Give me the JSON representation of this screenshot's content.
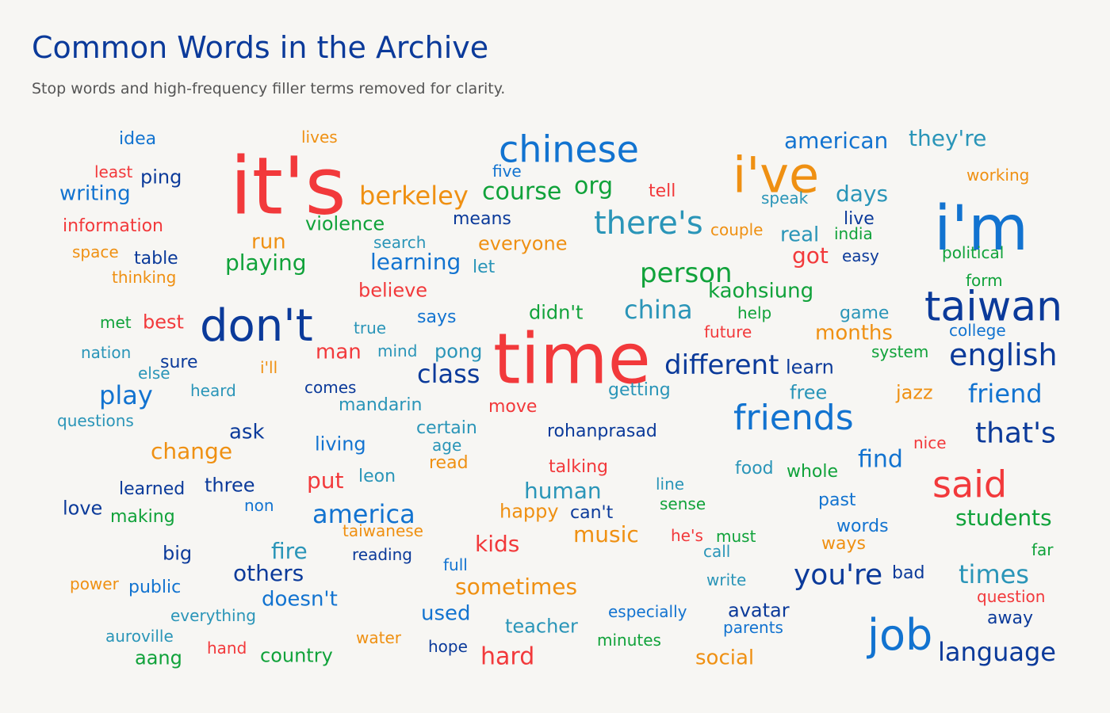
{
  "chart_data": {
    "type": "wordcloud",
    "title": "Common Words in the Archive",
    "subtitle": "Stop words and high-frequency filler terms removed for clarity.",
    "palette": {
      "dark_blue": "#0b3a9a",
      "blue": "#1273d0",
      "teal": "#2a95b8",
      "red": "#f2393b",
      "orange": "#ef9012",
      "green": "#10a23a"
    },
    "words": [
      {
        "text": "it's",
        "weight": 100,
        "color": "red"
      },
      {
        "text": "time",
        "weight": 90,
        "color": "red"
      },
      {
        "text": "i'm",
        "weight": 80,
        "color": "blue"
      },
      {
        "text": "i've",
        "weight": 65,
        "color": "orange"
      },
      {
        "text": "don't",
        "weight": 60,
        "color": "dark_blue"
      },
      {
        "text": "job",
        "weight": 58,
        "color": "blue"
      },
      {
        "text": "taiwan",
        "weight": 55,
        "color": "dark_blue"
      },
      {
        "text": "chinese",
        "weight": 52,
        "color": "blue"
      },
      {
        "text": "said",
        "weight": 50,
        "color": "red"
      },
      {
        "text": "friends",
        "weight": 48,
        "color": "blue"
      },
      {
        "text": "there's",
        "weight": 46,
        "color": "teal"
      },
      {
        "text": "english",
        "weight": 43,
        "color": "dark_blue"
      },
      {
        "text": "you're",
        "weight": 42,
        "color": "dark_blue"
      },
      {
        "text": "that's",
        "weight": 41,
        "color": "dark_blue"
      },
      {
        "text": "different",
        "weight": 40,
        "color": "dark_blue"
      },
      {
        "text": "person",
        "weight": 40,
        "color": "green"
      },
      {
        "text": "china",
        "weight": 39,
        "color": "teal"
      },
      {
        "text": "play",
        "weight": 39,
        "color": "blue"
      },
      {
        "text": "friend",
        "weight": 38,
        "color": "blue"
      },
      {
        "text": "times",
        "weight": 38,
        "color": "teal"
      },
      {
        "text": "class",
        "weight": 38,
        "color": "dark_blue"
      },
      {
        "text": "america",
        "weight": 38,
        "color": "blue"
      },
      {
        "text": "language",
        "weight": 37,
        "color": "dark_blue"
      },
      {
        "text": "berkeley",
        "weight": 37,
        "color": "orange"
      },
      {
        "text": "find",
        "weight": 36,
        "color": "blue"
      },
      {
        "text": "hard",
        "weight": 36,
        "color": "red"
      },
      {
        "text": "course",
        "weight": 35,
        "color": "green"
      },
      {
        "text": "org",
        "weight": 35,
        "color": "green"
      },
      {
        "text": "students",
        "weight": 34,
        "color": "green"
      },
      {
        "text": "american",
        "weight": 33,
        "color": "blue"
      },
      {
        "text": "playing",
        "weight": 33,
        "color": "green"
      },
      {
        "text": "others",
        "weight": 32,
        "color": "dark_blue"
      },
      {
        "text": "got",
        "weight": 32,
        "color": "red"
      },
      {
        "text": "fire",
        "weight": 32,
        "color": "teal"
      },
      {
        "text": "they're",
        "weight": 31,
        "color": "teal"
      },
      {
        "text": "days",
        "weight": 31,
        "color": "teal"
      },
      {
        "text": "human",
        "weight": 31,
        "color": "teal"
      },
      {
        "text": "change",
        "weight": 30,
        "color": "orange"
      },
      {
        "text": "learning",
        "weight": 30,
        "color": "blue"
      },
      {
        "text": "put",
        "weight": 30,
        "color": "red"
      },
      {
        "text": "sometimes",
        "weight": 30,
        "color": "orange"
      },
      {
        "text": "music",
        "weight": 30,
        "color": "orange"
      },
      {
        "text": "kids",
        "weight": 30,
        "color": "red"
      },
      {
        "text": "doesn't",
        "weight": 29,
        "color": "blue"
      },
      {
        "text": "kaohsiung",
        "weight": 29,
        "color": "green"
      },
      {
        "text": "writing",
        "weight": 29,
        "color": "blue"
      },
      {
        "text": "man",
        "weight": 28,
        "color": "red"
      },
      {
        "text": "real",
        "weight": 28,
        "color": "teal"
      },
      {
        "text": "social",
        "weight": 28,
        "color": "orange"
      },
      {
        "text": "used",
        "weight": 28,
        "color": "blue"
      },
      {
        "text": "run",
        "weight": 28,
        "color": "orange"
      },
      {
        "text": "ask",
        "weight": 27,
        "color": "dark_blue"
      },
      {
        "text": "months",
        "weight": 27,
        "color": "orange"
      },
      {
        "text": "learn",
        "weight": 27,
        "color": "dark_blue"
      },
      {
        "text": "teacher",
        "weight": 27,
        "color": "teal"
      },
      {
        "text": "ping",
        "weight": 27,
        "color": "dark_blue"
      },
      {
        "text": "three",
        "weight": 27,
        "color": "dark_blue"
      },
      {
        "text": "best",
        "weight": 27,
        "color": "red"
      },
      {
        "text": "aang",
        "weight": 27,
        "color": "green"
      },
      {
        "text": "country",
        "weight": 26,
        "color": "green"
      },
      {
        "text": "violence",
        "weight": 26,
        "color": "green"
      },
      {
        "text": "living",
        "weight": 26,
        "color": "blue"
      },
      {
        "text": "pong",
        "weight": 26,
        "color": "teal"
      },
      {
        "text": "didn't",
        "weight": 26,
        "color": "green"
      },
      {
        "text": "avatar",
        "weight": 26,
        "color": "dark_blue"
      },
      {
        "text": "believe",
        "weight": 26,
        "color": "red"
      },
      {
        "text": "free",
        "weight": 26,
        "color": "teal"
      },
      {
        "text": "jazz",
        "weight": 26,
        "color": "orange"
      },
      {
        "text": "happy",
        "weight": 26,
        "color": "orange"
      },
      {
        "text": "everyone",
        "weight": 26,
        "color": "orange"
      },
      {
        "text": "big",
        "weight": 26,
        "color": "dark_blue"
      },
      {
        "text": "love",
        "weight": 26,
        "color": "dark_blue"
      },
      {
        "text": "idea",
        "weight": 25,
        "color": "blue"
      },
      {
        "text": "means",
        "weight": 25,
        "color": "dark_blue"
      },
      {
        "text": "food",
        "weight": 25,
        "color": "teal"
      },
      {
        "text": "read",
        "weight": 25,
        "color": "orange"
      },
      {
        "text": "words",
        "weight": 25,
        "color": "blue"
      },
      {
        "text": "ways",
        "weight": 25,
        "color": "orange"
      },
      {
        "text": "learned",
        "weight": 24,
        "color": "dark_blue"
      },
      {
        "text": "information",
        "weight": 24,
        "color": "red"
      },
      {
        "text": "making",
        "weight": 24,
        "color": "green"
      },
      {
        "text": "says",
        "weight": 24,
        "color": "blue"
      },
      {
        "text": "game",
        "weight": 24,
        "color": "teal"
      },
      {
        "text": "mandarin",
        "weight": 24,
        "color": "teal"
      },
      {
        "text": "getting",
        "weight": 24,
        "color": "teal"
      },
      {
        "text": "move",
        "weight": 24,
        "color": "red"
      },
      {
        "text": "talking",
        "weight": 24,
        "color": "red"
      },
      {
        "text": "sure",
        "weight": 24,
        "color": "dark_blue"
      },
      {
        "text": "leon",
        "weight": 24,
        "color": "teal"
      },
      {
        "text": "live",
        "weight": 24,
        "color": "dark_blue"
      },
      {
        "text": "whole",
        "weight": 24,
        "color": "green"
      },
      {
        "text": "rohanprasad",
        "weight": 24,
        "color": "dark_blue"
      },
      {
        "text": "certain",
        "weight": 24,
        "color": "teal"
      },
      {
        "text": "tell",
        "weight": 24,
        "color": "red"
      },
      {
        "text": "past",
        "weight": 24,
        "color": "blue"
      },
      {
        "text": "public",
        "weight": 24,
        "color": "blue"
      },
      {
        "text": "reading",
        "weight": 23,
        "color": "dark_blue"
      },
      {
        "text": "write",
        "weight": 23,
        "color": "teal"
      },
      {
        "text": "taiwanese",
        "weight": 23,
        "color": "orange"
      },
      {
        "text": "bad",
        "weight": 23,
        "color": "dark_blue"
      },
      {
        "text": "can't",
        "weight": 23,
        "color": "dark_blue"
      },
      {
        "text": "especially",
        "weight": 23,
        "color": "blue"
      },
      {
        "text": "table",
        "weight": 23,
        "color": "dark_blue"
      },
      {
        "text": "questions",
        "weight": 23,
        "color": "teal"
      },
      {
        "text": "everything",
        "weight": 23,
        "color": "teal"
      },
      {
        "text": "comes",
        "weight": 23,
        "color": "dark_blue"
      },
      {
        "text": "lives",
        "weight": 23,
        "color": "orange"
      },
      {
        "text": "let",
        "weight": 23,
        "color": "teal"
      },
      {
        "text": "working",
        "weight": 23,
        "color": "orange"
      },
      {
        "text": "speak",
        "weight": 23,
        "color": "teal"
      },
      {
        "text": "easy",
        "weight": 23,
        "color": "dark_blue"
      },
      {
        "text": "couple",
        "weight": 23,
        "color": "orange"
      },
      {
        "text": "college",
        "weight": 23,
        "color": "blue"
      },
      {
        "text": "away",
        "weight": 23,
        "color": "dark_blue"
      },
      {
        "text": "question",
        "weight": 23,
        "color": "red"
      },
      {
        "text": "heard",
        "weight": 22,
        "color": "teal"
      },
      {
        "text": "thinking",
        "weight": 22,
        "color": "orange"
      },
      {
        "text": "search",
        "weight": 22,
        "color": "teal"
      },
      {
        "text": "true",
        "weight": 22,
        "color": "teal"
      },
      {
        "text": "mind",
        "weight": 22,
        "color": "teal"
      },
      {
        "text": "least",
        "weight": 22,
        "color": "red"
      },
      {
        "text": "nation",
        "weight": 22,
        "color": "teal"
      },
      {
        "text": "else",
        "weight": 22,
        "color": "teal"
      },
      {
        "text": "space",
        "weight": 22,
        "color": "orange"
      },
      {
        "text": "met",
        "weight": 22,
        "color": "green"
      },
      {
        "text": "five",
        "weight": 22,
        "color": "blue"
      },
      {
        "text": "i'll",
        "weight": 22,
        "color": "orange"
      },
      {
        "text": "age",
        "weight": 22,
        "color": "teal"
      },
      {
        "text": "non",
        "weight": 22,
        "color": "blue"
      },
      {
        "text": "full",
        "weight": 22,
        "color": "blue"
      },
      {
        "text": "help",
        "weight": 22,
        "color": "green"
      },
      {
        "text": "future",
        "weight": 22,
        "color": "red"
      },
      {
        "text": "system",
        "weight": 22,
        "color": "green"
      },
      {
        "text": "india",
        "weight": 22,
        "color": "green"
      },
      {
        "text": "political",
        "weight": 22,
        "color": "green"
      },
      {
        "text": "form",
        "weight": 22,
        "color": "green"
      },
      {
        "text": "nice",
        "weight": 22,
        "color": "red"
      },
      {
        "text": "line",
        "weight": 22,
        "color": "teal"
      },
      {
        "text": "sense",
        "weight": 22,
        "color": "green"
      },
      {
        "text": "he's",
        "weight": 22,
        "color": "red"
      },
      {
        "text": "must",
        "weight": 22,
        "color": "green"
      },
      {
        "text": "call",
        "weight": 22,
        "color": "teal"
      },
      {
        "text": "far",
        "weight": 22,
        "color": "green"
      },
      {
        "text": "power",
        "weight": 22,
        "color": "orange"
      },
      {
        "text": "auroville",
        "weight": 22,
        "color": "teal"
      },
      {
        "text": "hand",
        "weight": 22,
        "color": "red"
      },
      {
        "text": "water",
        "weight": 22,
        "color": "orange"
      },
      {
        "text": "hope",
        "weight": 22,
        "color": "dark_blue"
      },
      {
        "text": "minutes",
        "weight": 22,
        "color": "green"
      },
      {
        "text": "parents",
        "weight": 22,
        "color": "blue"
      }
    ]
  }
}
